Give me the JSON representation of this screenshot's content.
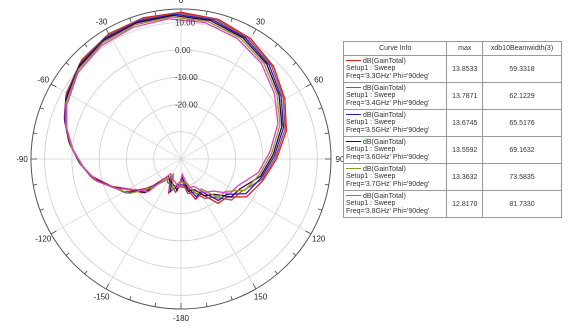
{
  "chart_data": {
    "type": "polar-line",
    "angle_ticks": [
      "0",
      "30",
      "60",
      "90",
      "120",
      "150",
      "-180",
      "-150",
      "-120",
      "-90",
      "-60",
      "-30"
    ],
    "angle_tick_values": [
      0,
      30,
      60,
      90,
      120,
      150,
      180,
      -150,
      -120,
      -90,
      -60,
      -30
    ],
    "radial_ticks": [
      "10.00",
      "0.00",
      "-10.00",
      "-20.00"
    ],
    "radial_tick_values": [
      10,
      0,
      -10,
      -20
    ],
    "radial_range": [
      -40,
      15
    ],
    "grid": true,
    "legend": {
      "headers": [
        "Curve Info",
        "max",
        "xdb10Beamwidth(3)"
      ],
      "rows": [
        {
          "info_line1": "dB(GainTotal)",
          "info_line2": "Setup1 : Sweep",
          "info_line3": "Freq='3.3GHz' Phi='90deg'",
          "max": "13.8533",
          "beamwidth": "59.3318",
          "color": "#e02020"
        },
        {
          "info_line1": "dB(GainTotal)",
          "info_line2": "Setup1 : Sweep",
          "info_line3": "Freq='3.4GHz' Phi='90deg'",
          "max": "13.7871",
          "beamwidth": "62.1229",
          "color": "#a05050"
        },
        {
          "info_line1": "dB(GainTotal)",
          "info_line2": "Setup1 : Sweep",
          "info_line3": "Freq='3.5GHz' Phi='90deg'",
          "max": "13.6745",
          "beamwidth": "65.5176",
          "color": "#2020c0"
        },
        {
          "info_line1": "dB(GainTotal)",
          "info_line2": "Setup1 : Sweep",
          "info_line3": "Freq='3.6GHz' Phi='90deg'",
          "max": "13.5592",
          "beamwidth": "69.1632",
          "color": "#400040"
        },
        {
          "info_line1": "dB(GainTotal)",
          "info_line2": "Setup1 : Sweep",
          "info_line3": "Freq='3.7GHz' Phi='90deg'",
          "max": "13.3632",
          "beamwidth": "73.5835",
          "color": "#8aa020"
        },
        {
          "info_line1": "dB(GainTotal)",
          "info_line2": "Setup1 : Sweep",
          "info_line3": "Freq='3.8GHz' Phi='90deg'",
          "max": "12.8170",
          "beamwidth": "81.7330",
          "color": "#e040c0"
        }
      ]
    },
    "base_pattern": {
      "theta_deg": [
        0,
        15,
        30,
        45,
        60,
        75,
        90,
        105,
        120,
        130,
        140,
        150,
        160,
        170,
        180,
        -170,
        -160,
        -150,
        -140,
        -130,
        -120,
        -110,
        -100,
        -90,
        -80,
        -70,
        -60,
        -45,
        -30,
        -15
      ],
      "gain_db": [
        13.8,
        13.0,
        11.0,
        8.0,
        4.0,
        0.0,
        -5.0,
        -9.0,
        -13.5,
        -17.0,
        -20.0,
        -24.0,
        -25.5,
        -28.0,
        -31.0,
        -28.5,
        -28.0,
        -31.0,
        -30.0,
        -22.0,
        -17.0,
        -12.0,
        -6.0,
        -2.0,
        2.0,
        5.5,
        8.5,
        11.5,
        13.0,
        13.6
      ]
    },
    "series": [
      {
        "name": "Freq='3.3GHz' Phi='90deg'",
        "color": "#e02020",
        "offset_db": 0.0,
        "rot_deg": 0
      },
      {
        "name": "Freq='3.4GHz' Phi='90deg'",
        "color": "#a05050",
        "offset_db": -0.3,
        "rot_deg": -1
      },
      {
        "name": "Freq='3.5GHz' Phi='90deg'",
        "color": "#2020c0",
        "offset_db": -0.7,
        "rot_deg": -2
      },
      {
        "name": "Freq='3.6GHz' Phi='90deg'",
        "color": "#400040",
        "offset_db": -1.1,
        "rot_deg": -3
      },
      {
        "name": "Freq='3.7GHz' Phi='90deg'",
        "color": "#8aa020",
        "offset_db": -1.6,
        "rot_deg": -4
      },
      {
        "name": "Freq='3.8GHz' Phi='90deg'",
        "color": "#e040c0",
        "offset_db": -2.2,
        "rot_deg": -5
      }
    ]
  }
}
